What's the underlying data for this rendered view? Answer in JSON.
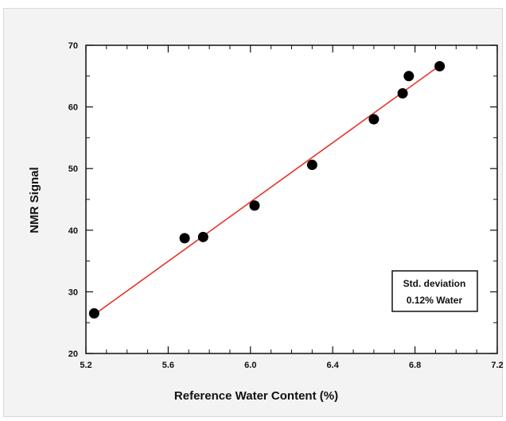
{
  "chart_data": {
    "type": "scatter",
    "title": "",
    "xlabel": "Reference Water Content (%)",
    "ylabel": "NMR Signal",
    "xlim": [
      5.2,
      7.2
    ],
    "ylim": [
      20,
      70
    ],
    "x_ticks": [
      "5.2",
      "5.6",
      "6.0",
      "6.4",
      "6.8",
      "7.2"
    ],
    "y_ticks": [
      "20",
      "30",
      "40",
      "50",
      "60",
      "70"
    ],
    "grid": false,
    "points": [
      {
        "x": 5.24,
        "y": 26.5
      },
      {
        "x": 5.68,
        "y": 38.7
      },
      {
        "x": 5.77,
        "y": 38.9
      },
      {
        "x": 6.02,
        "y": 44.0
      },
      {
        "x": 6.3,
        "y": 50.6
      },
      {
        "x": 6.6,
        "y": 58.0
      },
      {
        "x": 6.74,
        "y": 62.2
      },
      {
        "x": 6.77,
        "y": 65.0
      },
      {
        "x": 6.92,
        "y": 66.6
      }
    ],
    "fit_line": {
      "x": [
        5.24,
        6.92
      ],
      "y": [
        26.3,
        66.7
      ],
      "color": "#e8332a"
    },
    "annotation": {
      "line1": "Std. deviation",
      "line2": "0.12% Water"
    },
    "marker_color": "#000000"
  }
}
